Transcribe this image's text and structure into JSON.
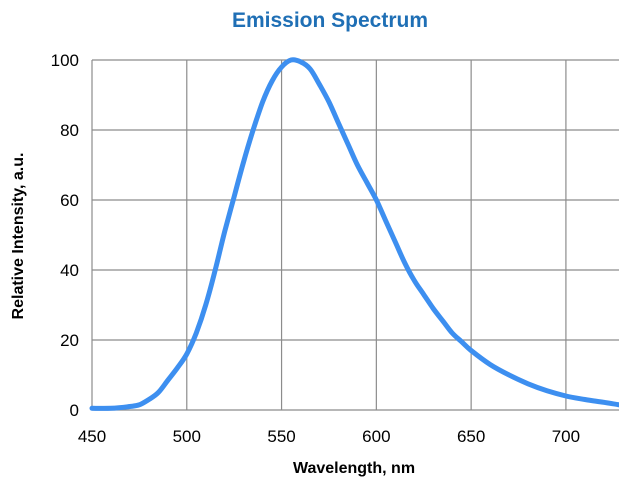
{
  "chart_data": {
    "type": "line",
    "title": "Emission Spectrum",
    "xlabel": "Wavelength, nm",
    "ylabel": "Relative Intensity, a.u.",
    "xlim": [
      450,
      728
    ],
    "ylim": [
      0,
      100
    ],
    "xticks": [
      450,
      500,
      550,
      600,
      650,
      700
    ],
    "yticks": [
      0,
      20,
      40,
      60,
      80,
      100
    ],
    "grid": true,
    "legend": "none",
    "series": [
      {
        "color": "#3d8ff0",
        "points": [
          [
            450,
            0.5
          ],
          [
            460,
            0.5
          ],
          [
            470,
            1
          ],
          [
            475,
            1.5
          ],
          [
            480,
            3
          ],
          [
            485,
            5
          ],
          [
            490,
            8.5
          ],
          [
            495,
            12
          ],
          [
            500,
            16
          ],
          [
            505,
            22
          ],
          [
            510,
            30
          ],
          [
            515,
            40
          ],
          [
            520,
            51
          ],
          [
            525,
            61
          ],
          [
            530,
            71
          ],
          [
            535,
            80
          ],
          [
            540,
            88
          ],
          [
            545,
            94
          ],
          [
            550,
            98
          ],
          [
            555,
            100
          ],
          [
            560,
            99.5
          ],
          [
            565,
            97.5
          ],
          [
            570,
            93
          ],
          [
            575,
            88
          ],
          [
            580,
            82
          ],
          [
            585,
            76
          ],
          [
            590,
            70
          ],
          [
            595,
            65
          ],
          [
            600,
            60
          ],
          [
            605,
            54
          ],
          [
            610,
            48
          ],
          [
            615,
            42
          ],
          [
            620,
            37
          ],
          [
            625,
            33
          ],
          [
            630,
            29
          ],
          [
            635,
            25.5
          ],
          [
            640,
            22
          ],
          [
            645,
            19.5
          ],
          [
            650,
            17
          ],
          [
            660,
            13
          ],
          [
            670,
            10
          ],
          [
            680,
            7.5
          ],
          [
            690,
            5.5
          ],
          [
            700,
            4
          ],
          [
            710,
            3
          ],
          [
            720,
            2.2
          ],
          [
            728,
            1.5
          ]
        ]
      }
    ]
  }
}
